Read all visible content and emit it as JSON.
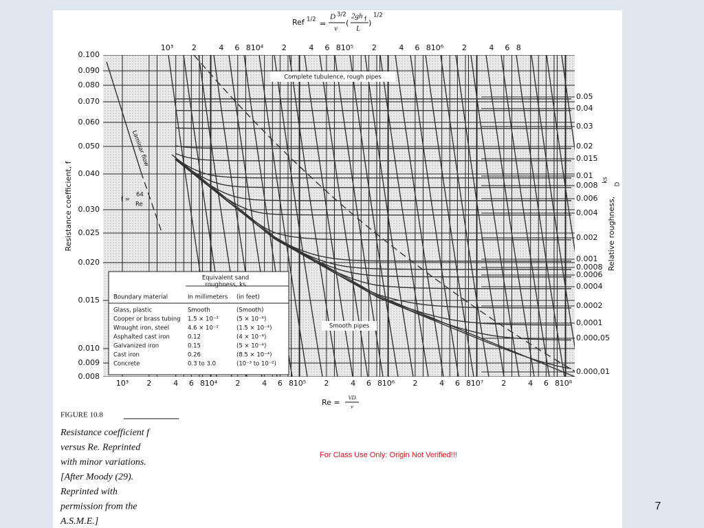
{
  "figure": {
    "formula": {
      "lhs": "Ref",
      "lhs_exp": "1/2",
      "equals": "=",
      "num": "D",
      "num_exp": "3/2",
      "den": "ν",
      "inner_num": "2gh",
      "inner_sub": "f",
      "inner_den": "L",
      "exp": "1/2"
    },
    "top_ticks": [
      "10³",
      "2",
      "4",
      "6",
      "8",
      "10⁴",
      "2",
      "4",
      "6",
      "8",
      "10⁵",
      "2",
      "4",
      "6",
      "8",
      "10⁶",
      "2",
      "4",
      "6",
      "8"
    ],
    "left_ticks": [
      "0.100",
      "0.090",
      "0.080",
      "0.070",
      "0.060",
      "0.050",
      "0.040",
      "0.030",
      "0.025",
      "0.020",
      "0.015",
      "0.010",
      "0.009",
      "0.008"
    ],
    "right_ticks": [
      "0.05",
      "0.04",
      "0.03",
      "0.02",
      "0.015",
      "0.01",
      "0.008",
      "0.006",
      "0.004",
      "0.002",
      "0.001",
      "0.0008",
      "0.0006",
      "0.0004",
      "0.0002",
      "0.0001",
      "0.000,05",
      "0.000,01"
    ],
    "bottom_ticks": [
      "10³",
      "2",
      "4",
      "6",
      "8",
      "10⁴",
      "2",
      "4",
      "6",
      "8",
      "10⁵",
      "2",
      "4",
      "6",
      "8",
      "10⁶",
      "2",
      "4",
      "6",
      "8",
      "10⁷",
      "2",
      "4",
      "6",
      "8",
      "10⁸"
    ],
    "left_axis_label": "Resistance coefficient, f",
    "right_axis_label": "Relative roughness,",
    "right_axis_frac_num": "ks",
    "right_axis_frac_den": "D",
    "bottom_axis": {
      "lhs": "Re =",
      "num": "VD",
      "den": "ν"
    },
    "annotations": {
      "turbulence": "Complete tubulence, rough pipes",
      "laminar": "Laminar flow",
      "laminar_eq_lhs": "f =",
      "laminar_eq_num": "64",
      "laminar_eq_den": "Re",
      "smooth": "Smooth pipes"
    },
    "table": {
      "header": {
        "roughness": "Equivalent sand",
        "roughness2": "roughness, ks",
        "material": "Boundary material",
        "mm": "In millimeters",
        "ft": "(in feet)"
      },
      "rows": [
        [
          "Glass, plastic",
          "Smooth",
          "(Smooth)"
        ],
        [
          "Cooper or brass tubing",
          "1.5 × 10⁻³",
          "(5 × 10⁻⁶)"
        ],
        [
          "Wrought iron, steel",
          "4.6 × 10⁻²",
          "(1.5 × 10⁻⁴)"
        ],
        [
          "Asphalted cast iron",
          "0.12",
          "(4 × 10⁻⁴)"
        ],
        [
          "Galvanized iron",
          "0.15",
          "(5 × 10⁻⁴)"
        ],
        [
          "Cast iron",
          "0.26",
          "(8.5 × 10⁻⁴)"
        ],
        [
          "Concrete",
          "0.3 to 3.0",
          "(10⁻³ to 10⁻²)"
        ]
      ]
    }
  },
  "caption": {
    "label": "FIGURE 10.8",
    "lines": [
      "Resistance coefficient f",
      "versus Re. Reprinted",
      "with minor variations.",
      "[After Moody (29).",
      "Reprinted with",
      "permission from the",
      "A.S.M.E.]"
    ]
  },
  "notice": "For Class Use Only: Origin Not Verified!!!",
  "slide_number": "7"
}
